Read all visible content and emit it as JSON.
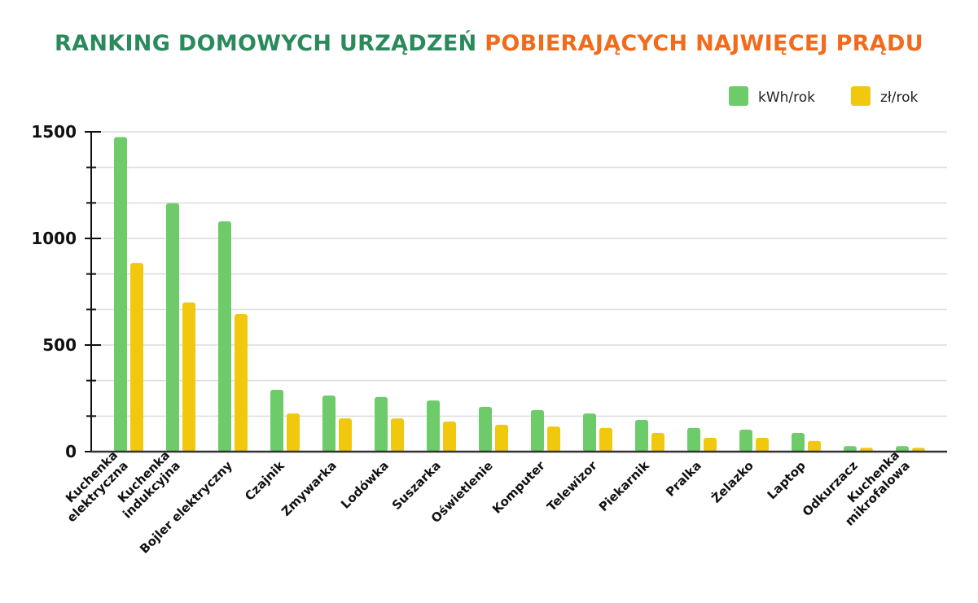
{
  "chart_data": {
    "type": "bar",
    "title_part1": "RANKING DOMOWYCH URZĄDZEŃ",
    "title_part2": "POBIERAJĄCYCH NAJWIĘCEJ PRĄDU",
    "title_colors": [
      "#2b8a5c",
      "#f26b1d"
    ],
    "categories": [
      [
        "Kuchenka",
        "elektryczna"
      ],
      [
        "Kuchenka",
        "indukcyjna"
      ],
      [
        "Bojler elektryczny"
      ],
      [
        "Czajnik"
      ],
      [
        "Zmywarka"
      ],
      [
        "Lodówka"
      ],
      [
        "Suszarka"
      ],
      [
        "Oświetlenie"
      ],
      [
        "Komputer"
      ],
      [
        "Telewizor"
      ],
      [
        "Piekarnik"
      ],
      [
        "Pralka"
      ],
      [
        "Żelazko"
      ],
      [
        "Laptop"
      ],
      [
        "Odkurzacz"
      ],
      [
        "Kuchenka",
        "mikrofalowa"
      ]
    ],
    "series": [
      {
        "name": "kWh/rok",
        "color": "#6dcb6a",
        "values": [
          1475,
          1165,
          1080,
          290,
          263,
          256,
          240,
          210,
          195,
          179,
          149,
          111,
          103,
          88,
          26,
          26
        ]
      },
      {
        "name": "zł/rok",
        "color": "#f0c90f",
        "values": [
          885,
          700,
          645,
          179,
          156,
          156,
          141,
          126,
          118,
          111,
          88,
          65,
          65,
          50,
          18,
          18
        ]
      }
    ],
    "ylim": [
      0,
      1500
    ],
    "yticks": [
      0,
      500,
      1000,
      1500
    ],
    "grid": true,
    "legend_position": "top-right",
    "xlabel": "",
    "ylabel": ""
  }
}
